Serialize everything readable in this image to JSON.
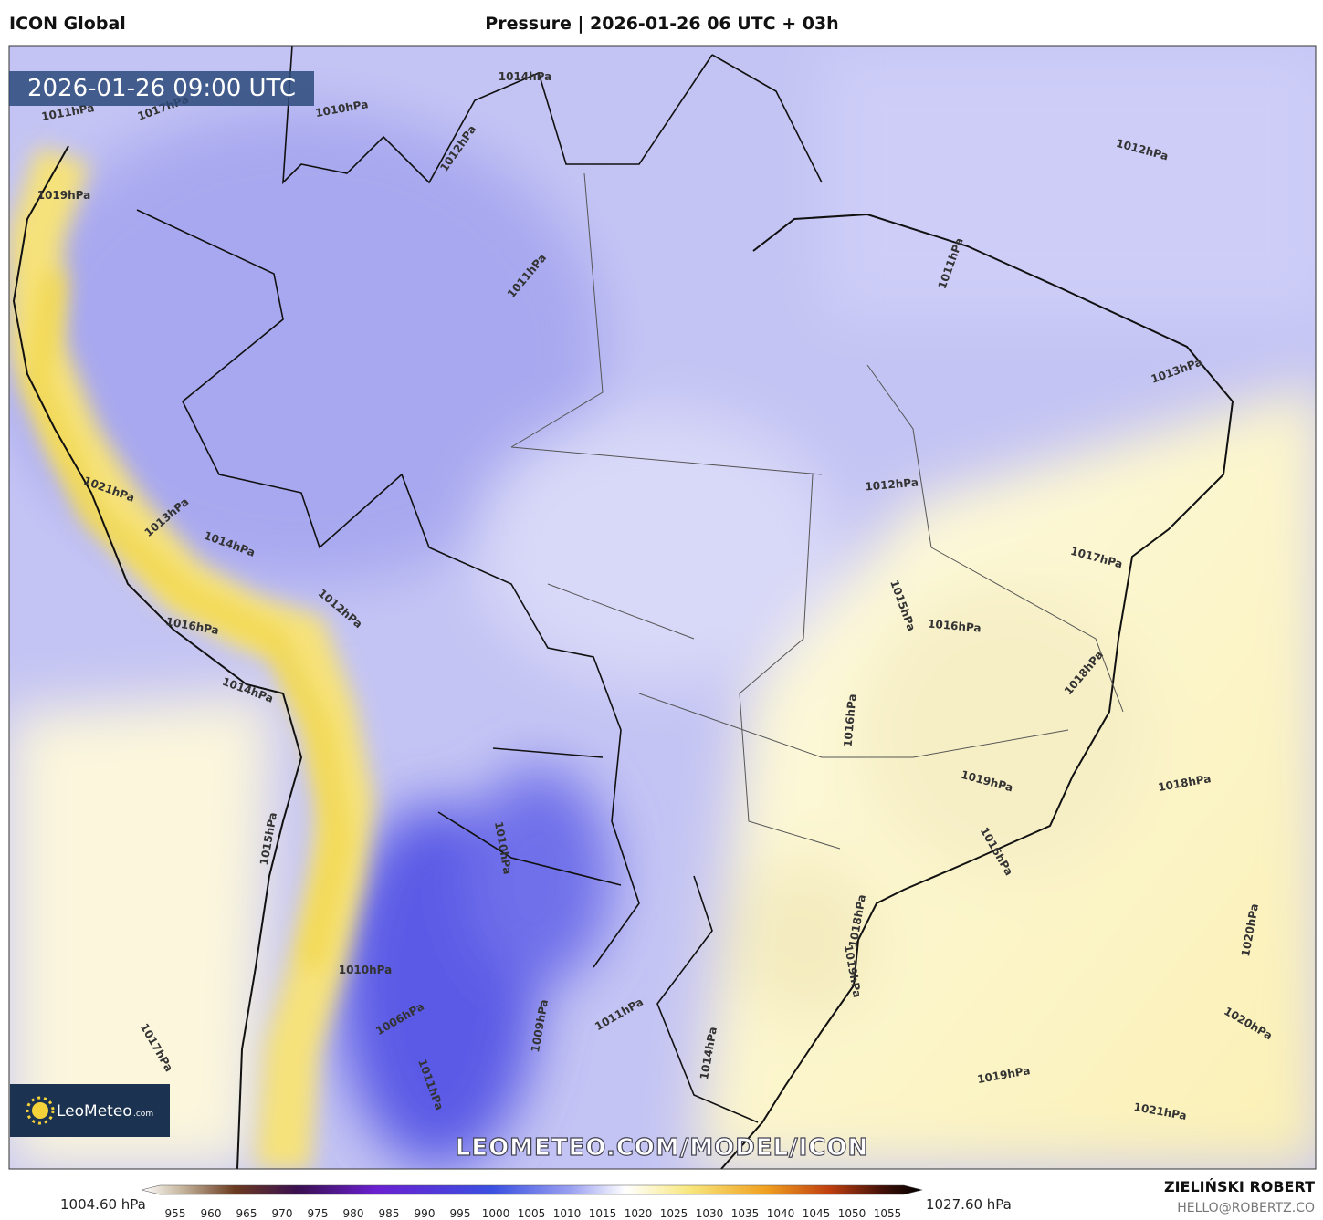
{
  "header": {
    "model": "ICON Global",
    "title": "Pressure | 2026-01-26 06 UTC + 03h"
  },
  "map": {
    "valid_time": "2026-01-26 09:00 UTC",
    "watermark": "LEOMETEO.COM/MODEL/ICON",
    "contour_labels": [
      "1014hPa",
      "1011hPa",
      "1017hPa",
      "1010hPa",
      "1012hPa",
      "1012hPa",
      "1019hPa",
      "1011hPa",
      "1011hPa",
      "1013hPa",
      "1012hPa",
      "1021hPa",
      "1013hPa",
      "1014hPa",
      "1017hPa",
      "1012hPa",
      "1016hPa",
      "1015hPa",
      "1016hPa",
      "1018hPa",
      "1014hPa",
      "1016hPa",
      "1019hPa",
      "1018hPa",
      "1010hPa",
      "1015hPa",
      "1016hPa",
      "1020hPa",
      "1009hPa",
      "1011hPa",
      "1014hPa",
      "1010hPa",
      "1006hPa",
      "1011hPa",
      "1017hPa",
      "1020hPa",
      "1019hPa",
      "1021hPa",
      "1018hPa",
      "1019hPa"
    ]
  },
  "logo": {
    "brand": "LeoMeteo",
    "suffix": ".com"
  },
  "colorbar": {
    "min_label": "1004.60 hPa",
    "max_label": "1027.60 hPa",
    "ticks": [
      955,
      960,
      965,
      970,
      975,
      980,
      985,
      990,
      995,
      1000,
      1005,
      1010,
      1015,
      1020,
      1025,
      1030,
      1035,
      1040,
      1045,
      1050,
      1055
    ]
  },
  "credit": {
    "author": "ZIELIŃSKI ROBERT",
    "email": "HELLO@ROBERTZ.CO"
  }
}
